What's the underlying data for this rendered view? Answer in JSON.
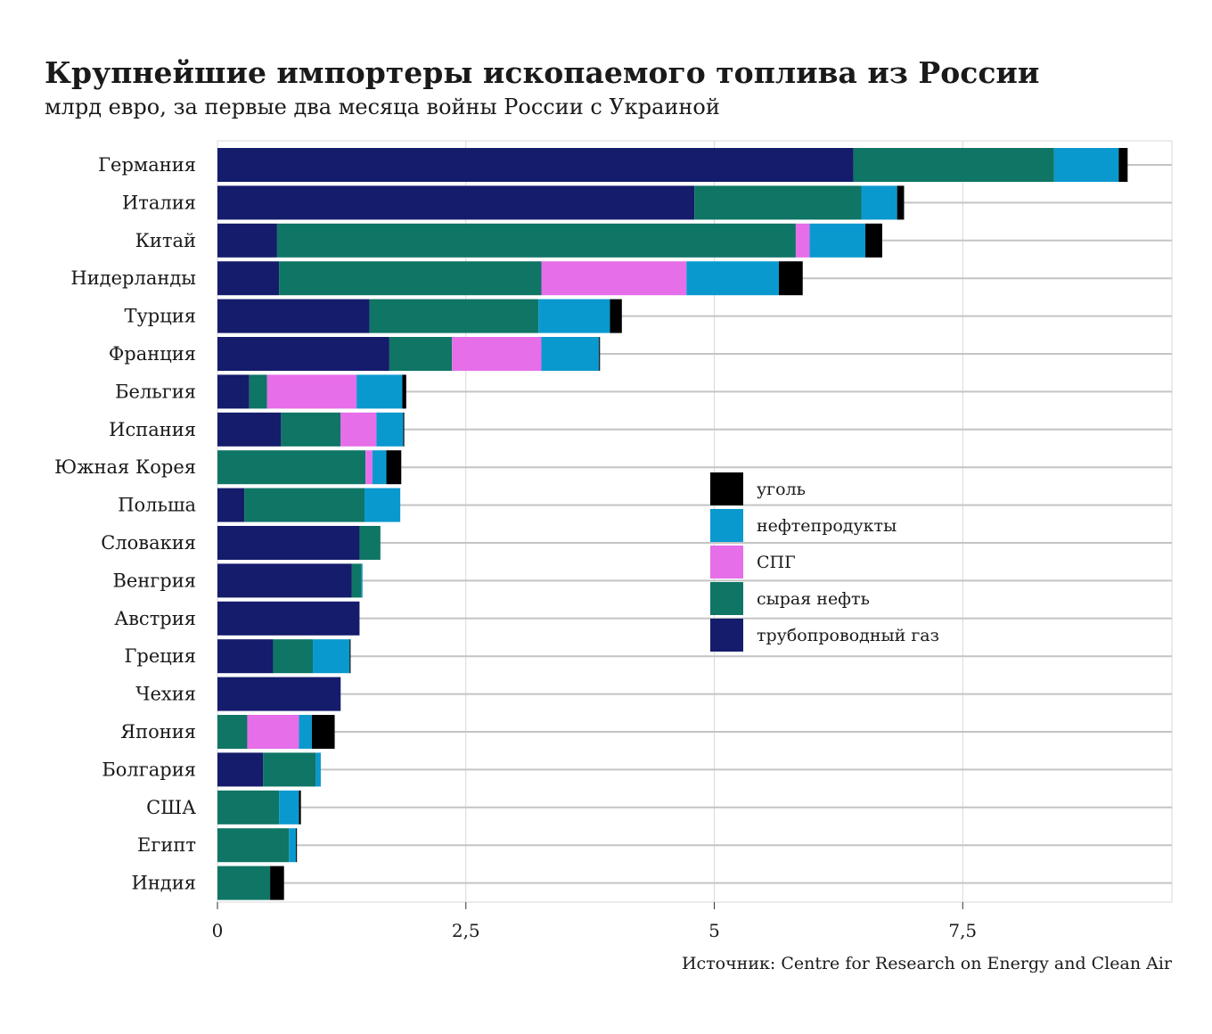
{
  "header": {
    "title": "Крупнейшие импортеры ископаемого топлива из России",
    "subtitle": "млрд евро, за первые два месяца войны России с Украиной"
  },
  "footer": {
    "source": "Источник: Centre for Research on Energy and Clean Air"
  },
  "chart_data": {
    "type": "bar",
    "orientation": "horizontal",
    "stacked": true,
    "title": "Крупнейшие импортеры ископаемого топлива из России",
    "subtitle": "млрд евро, за первые два месяца войны России с Украиной",
    "xlabel": "",
    "ylabel": "",
    "xlim": [
      0,
      9.6
    ],
    "x_ticks": [
      0,
      2.5,
      5,
      7.5
    ],
    "x_tick_labels": [
      "0",
      "2,5",
      "5",
      "7,5"
    ],
    "grid": true,
    "legend_position": "right-middle",
    "categories": [
      "Германия",
      "Италия",
      "Китай",
      "Нидерланды",
      "Турция",
      "Франция",
      "Бельгия",
      "Испания",
      "Южная Корея",
      "Польша",
      "Словакия",
      "Венгрия",
      "Австрия",
      "Греция",
      "Чехия",
      "Япония",
      "Болгария",
      "США",
      "Египт",
      "Индия"
    ],
    "series": [
      {
        "key": "pipeline",
        "name": "трубопроводный газ",
        "color": "#141c6b",
        "values": [
          6.4,
          4.8,
          0.6,
          0.62,
          1.53,
          1.73,
          0.32,
          0.64,
          0,
          0.27,
          1.43,
          1.35,
          1.43,
          0.56,
          1.24,
          0,
          0.46,
          0,
          0,
          0
        ]
      },
      {
        "key": "crude",
        "name": "сырая нефть",
        "color": "#0f7565",
        "values": [
          2.02,
          1.68,
          5.22,
          2.64,
          1.7,
          0.63,
          0.18,
          0.6,
          1.49,
          1.21,
          0.21,
          0.1,
          0,
          0.4,
          0,
          0.3,
          0.53,
          0.62,
          0.72,
          0.53
        ]
      },
      {
        "key": "lng",
        "name": "СПГ",
        "color": "#e66ee8",
        "values": [
          0,
          0,
          0.14,
          1.46,
          0,
          0.9,
          0.9,
          0.36,
          0.07,
          0,
          0,
          0,
          0,
          0,
          0,
          0.52,
          0,
          0,
          0,
          0
        ]
      },
      {
        "key": "products",
        "name": "нефтепродукты",
        "color": "#0a99cf",
        "values": [
          0.65,
          0.36,
          0.56,
          0.93,
          0.72,
          0.58,
          0.46,
          0.27,
          0.14,
          0.36,
          0,
          0.01,
          0,
          0.37,
          0,
          0.13,
          0.05,
          0.2,
          0.07,
          0
        ]
      },
      {
        "key": "coal",
        "name": "уголь",
        "color": "#000000",
        "values": [
          0.09,
          0.07,
          0.17,
          0.24,
          0.12,
          0.01,
          0.04,
          0.01,
          0.15,
          0,
          0,
          0,
          0,
          0.01,
          0,
          0.23,
          0,
          0.02,
          0.01,
          0.14
        ]
      }
    ],
    "legend_order": [
      "coal",
      "products",
      "lng",
      "crude",
      "pipeline"
    ]
  }
}
